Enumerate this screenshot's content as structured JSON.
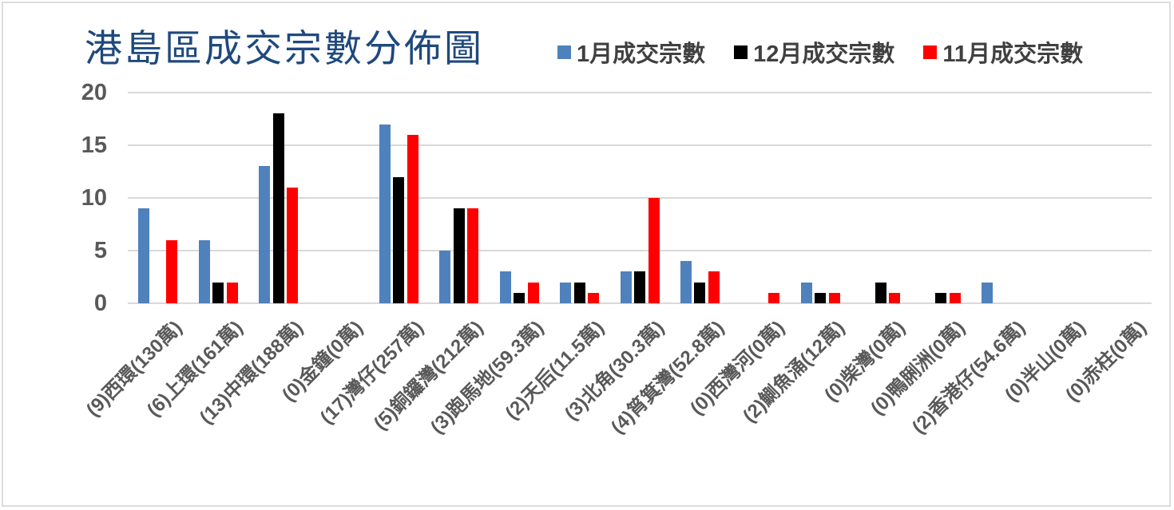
{
  "chart_data": {
    "type": "bar",
    "title": "港島區成交宗數分佈圖",
    "categories": [
      "(9)西環(130萬)",
      "(6)上環(161萬)",
      "(13)中環(188萬)",
      "(0)金鐘(0萬)",
      "(17)灣仔(257萬)",
      "(5)銅鑼灣(212萬)",
      "(3)跑馬地(59.3萬)",
      "(2)天后(11.5萬)",
      "(3)北角(30.3萬)",
      "(4)筲箕灣(52.8萬)",
      "(0)西灣河(0萬)",
      "(2)鰂魚涌(12萬)",
      "(0)柴灣(0萬)",
      "(0)鴨脷洲(0萬)",
      "(2)香港仔(54.6萬)",
      "(0)半山(0萬)",
      "(0)赤柱(0萬)"
    ],
    "series": [
      {
        "name": "1月成交宗數",
        "color": "#4F81BD",
        "values": [
          9,
          6,
          13,
          0,
          17,
          5,
          3,
          2,
          3,
          4,
          0,
          2,
          0,
          0,
          2,
          0,
          0
        ]
      },
      {
        "name": "12月成交宗數",
        "color": "#000000",
        "values": [
          0,
          2,
          18,
          0,
          12,
          9,
          1,
          2,
          3,
          2,
          0,
          1,
          2,
          1,
          0,
          0,
          0
        ]
      },
      {
        "name": "11月成交宗數",
        "color": "#FF0000",
        "values": [
          6,
          2,
          11,
          0,
          16,
          9,
          2,
          1,
          10,
          3,
          1,
          1,
          1,
          1,
          0,
          0,
          0
        ]
      }
    ],
    "ylim": [
      0,
      20
    ],
    "yticks": [
      0,
      5,
      10,
      15,
      20
    ],
    "grid": "horizontal",
    "legend_position": "top-right"
  },
  "colors": {
    "title_text": "#1F497D",
    "axis_text": "#595959",
    "legend_text": "#404040",
    "gridline": "#D9D9D9",
    "frame_border": "#DCDCDC",
    "background": "#FFFFFF"
  }
}
